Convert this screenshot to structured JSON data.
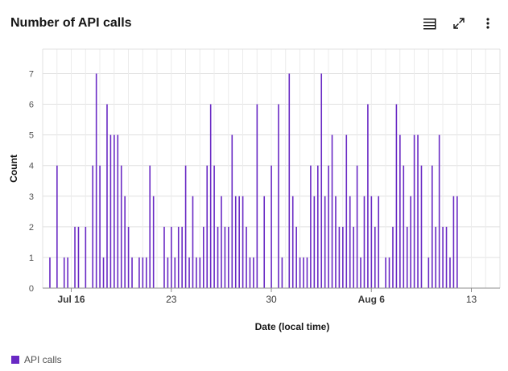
{
  "header": {
    "title": "Number of API calls",
    "icons": [
      "table-view-icon",
      "maximize-icon",
      "overflow-menu-icon"
    ]
  },
  "colors": {
    "series": "#6929c4",
    "grid": "#e0e0e0",
    "axis": "#8d8d8d",
    "text": "#525252"
  },
  "chart_data": {
    "type": "bar",
    "xlabel": "Date (local time)",
    "ylabel": "Count",
    "ylim": [
      0,
      7.8
    ],
    "y_ticks": [
      0,
      1,
      2,
      3,
      4,
      5,
      6,
      7
    ],
    "x_range": [
      "2024-07-14",
      "2024-08-15"
    ],
    "x_ticks": [
      {
        "date": "2024-07-16",
        "label": "Jul 16"
      },
      {
        "date": "2024-07-23",
        "label": "23"
      },
      {
        "date": "2024-07-30",
        "label": "30"
      },
      {
        "date": "2024-08-06",
        "label": "Aug 6"
      },
      {
        "date": "2024-08-13",
        "label": "13"
      }
    ],
    "grid": true,
    "legend_position": "bottom-left",
    "series": [
      {
        "name": "API calls",
        "start": "2024-07-14T12:00",
        "step_hours": 6,
        "values": [
          1,
          0,
          4,
          0,
          1,
          1,
          0,
          2,
          2,
          0,
          2,
          0,
          4,
          7,
          4,
          1,
          6,
          5,
          5,
          5,
          4,
          3,
          2,
          1,
          0,
          1,
          1,
          1,
          4,
          3,
          0,
          0,
          2,
          1,
          2,
          1,
          2,
          2,
          4,
          1,
          3,
          1,
          1,
          2,
          4,
          6,
          4,
          2,
          3,
          2,
          2,
          5,
          3,
          3,
          3,
          2,
          1,
          1,
          6,
          0,
          3,
          0,
          4,
          0,
          6,
          1,
          0,
          7,
          3,
          2,
          1,
          1,
          1,
          4,
          3,
          4,
          7,
          3,
          4,
          5,
          3,
          2,
          2,
          5,
          3,
          2,
          4,
          1,
          3,
          6,
          3,
          2,
          3,
          0,
          1,
          1,
          2,
          6,
          5,
          4,
          2,
          3,
          5,
          5,
          4,
          0,
          1,
          4,
          2,
          5,
          2,
          2,
          1,
          3,
          3
        ]
      }
    ]
  }
}
